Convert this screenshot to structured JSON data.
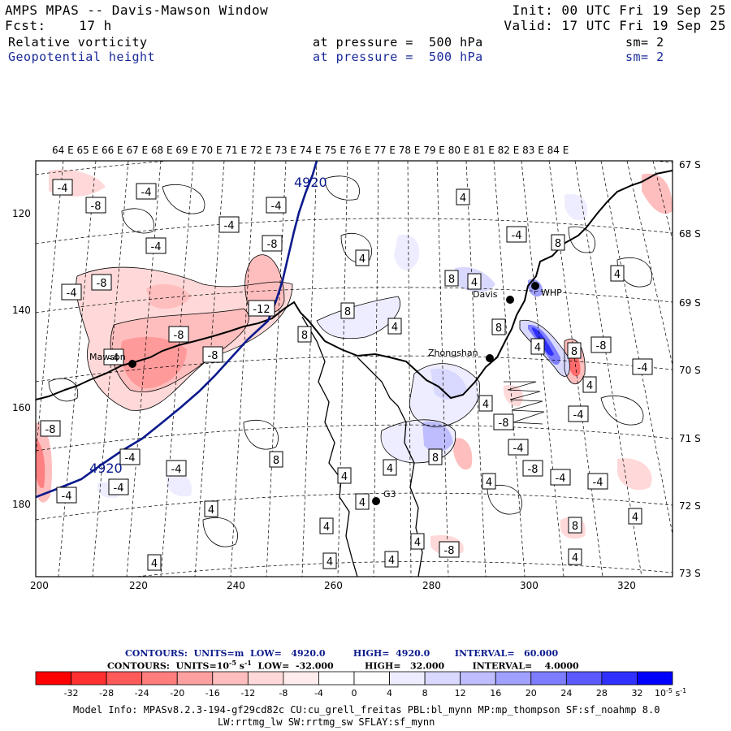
{
  "header": {
    "title": "AMPS MPAS -- Davis-Mawson Window",
    "init": "Init: 00 UTC Fri 19 Sep 25",
    "fcst": "Fcst:    17 h",
    "valid": "Valid: 17 UTC Fri 19 Sep 25",
    "field1": "Relative vorticity",
    "field1_level": "at pressure =  500 hPa",
    "field1_sm": "sm= 2",
    "field2": "Geopotential height",
    "field2_level": "at pressure =  500 hPa",
    "field2_sm": "sm= 2"
  },
  "map": {
    "top_longitudes": "64 E 65 E 66 E 67 E 68 E 69 E 70 E 71 E 72 E 73 E 74 E 75 E 76 E 77 E 78 E 79 E 80 E 81 E 82 E 83 E 84 E",
    "x_ticks": [
      "200",
      "220",
      "240",
      "260",
      "280",
      "300",
      "320"
    ],
    "y_ticks": [
      "120",
      "140",
      "160",
      "180"
    ],
    "lat_labels": [
      "67 S",
      "68 S",
      "69 S",
      "70 S",
      "71 S",
      "72 S",
      "73 S"
    ],
    "stations": {
      "mawson": "Mawson",
      "davis": "Davis",
      "zhongshan": "Zhongshan",
      "whp": "WHP",
      "g3": "G3"
    },
    "height_labels": [
      "4920",
      "4920"
    ],
    "vort_labels": [
      "-4",
      "-8",
      "-4",
      "-4",
      "-4",
      "-8",
      "-4",
      "-8",
      "-4",
      "-12",
      "-8",
      "-8",
      "-4",
      "8",
      "4",
      "8",
      "4",
      "4",
      "8",
      "4",
      "-4",
      "8",
      "4",
      "8",
      "4",
      "8",
      "-8",
      "4",
      "-4",
      "-4",
      "-8",
      "-4",
      "-4",
      "-4",
      "4",
      "8",
      "4",
      "4",
      "4",
      "4",
      "4",
      "4",
      "4",
      "4",
      "8",
      "8",
      "-8",
      "4",
      "4",
      "-4",
      "-4",
      "-8",
      "4",
      "-4",
      "-8",
      "4",
      "-4"
    ]
  },
  "legend": {
    "contours1": "CONTOURS:  UNITS=m  LOW=   4920.0         HIGH=  4920.0        INTERVAL=   60.000",
    "contours2_a": "CONTOURS:  UNITS=10",
    "contours2_sup": "-5",
    "contours2_b": " s",
    "contours2_sup2": "-1",
    "contours2_c": "  LOW=  -32.000          HIGH=   32.000         INTERVAL=    4.0000",
    "colorbar_ticks": [
      "-32",
      "-28",
      "-24",
      "-20",
      "-16",
      "-12",
      "-8",
      "-4",
      "0",
      "4",
      "8",
      "12",
      "16",
      "20",
      "24",
      "28",
      "32"
    ],
    "colorbar_unit": "10",
    "colorbar_unit_sup": "-5",
    "colorbar_unit_s": " s",
    "colorbar_unit_sup2": "-1",
    "colorbar_colors": [
      "#ff0000",
      "#ff3030",
      "#ff5a5a",
      "#ff7d7d",
      "#ffa0a0",
      "#ffbebe",
      "#ffd9d9",
      "#ffeded",
      "#ffffff",
      "#ffffff",
      "#ededff",
      "#d9d9ff",
      "#bebeff",
      "#a0a0ff",
      "#7d7dff",
      "#5a5aff",
      "#3030ff",
      "#0000ff"
    ]
  },
  "footer": {
    "line1": "Model Info: MPASv8.2.3-194-gf29cd82c CU:cu_grell_freitas PBL:bl_mynn MP:mp_thompson SF:sf_noahmp 8.0",
    "line2": "LW:rrtmg_lw SW:rrtmg_sw SFLAY:sf_mynn"
  }
}
